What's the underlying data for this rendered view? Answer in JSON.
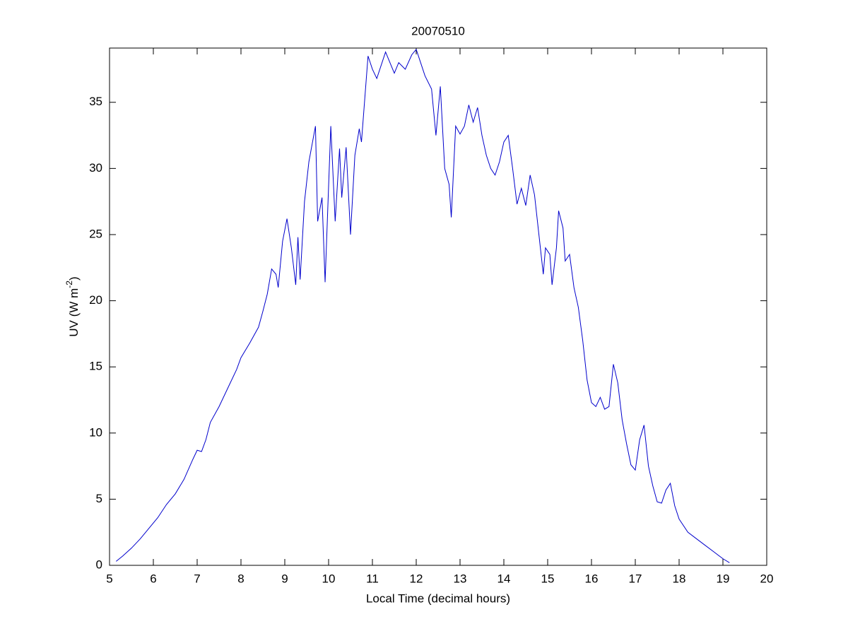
{
  "chart_data": {
    "type": "line",
    "title": "20070510",
    "x_label": "Local Time (decimal hours)",
    "y_label": {
      "text": "UV (W m",
      "superscript": "-2",
      "suffix": ")"
    },
    "xlim": [
      5,
      20
    ],
    "xticks": [
      5,
      6,
      7,
      8,
      9,
      10,
      11,
      12,
      13,
      14,
      15,
      16,
      17,
      18,
      19,
      20
    ],
    "ylim": [
      0,
      39.1
    ],
    "yticks": [
      0,
      5,
      10,
      15,
      20,
      25,
      30,
      35
    ],
    "grid": false,
    "series": [
      {
        "color": "#0000cc",
        "x": [
          5.15,
          5.3,
          5.5,
          5.7,
          5.9,
          6.1,
          6.3,
          6.5,
          6.7,
          6.9,
          7.0,
          7.1,
          7.2,
          7.3,
          7.5,
          7.7,
          7.9,
          8.0,
          8.2,
          8.4,
          8.5,
          8.6,
          8.7,
          8.8,
          8.85,
          8.95,
          9.05,
          9.15,
          9.25,
          9.3,
          9.35,
          9.45,
          9.55,
          9.7,
          9.75,
          9.85,
          9.92,
          10.05,
          10.15,
          10.25,
          10.3,
          10.4,
          10.5,
          10.6,
          10.7,
          10.75,
          10.9,
          11.0,
          11.1,
          11.3,
          11.5,
          11.6,
          11.75,
          11.9,
          12.0,
          12.1,
          12.2,
          12.35,
          12.45,
          12.55,
          12.65,
          12.75,
          12.8,
          12.9,
          13.0,
          13.1,
          13.2,
          13.3,
          13.4,
          13.5,
          13.6,
          13.7,
          13.8,
          13.9,
          14.0,
          14.1,
          14.2,
          14.3,
          14.4,
          14.5,
          14.6,
          14.7,
          14.8,
          14.9,
          14.95,
          15.05,
          15.1,
          15.2,
          15.25,
          15.35,
          15.4,
          15.5,
          15.6,
          15.7,
          15.8,
          15.9,
          16.0,
          16.1,
          16.2,
          16.3,
          16.4,
          16.5,
          16.6,
          16.7,
          16.8,
          16.9,
          17.0,
          17.1,
          17.2,
          17.3,
          17.4,
          17.5,
          17.6,
          17.7,
          17.8,
          17.9,
          18.0,
          18.2,
          18.4,
          18.6,
          18.8,
          19.0,
          19.15
        ],
        "values": [
          0.3,
          0.7,
          1.3,
          2.0,
          2.8,
          3.6,
          4.6,
          5.4,
          6.5,
          8.0,
          8.7,
          8.6,
          9.5,
          10.8,
          12.0,
          13.4,
          14.8,
          15.7,
          16.8,
          18.0,
          19.2,
          20.5,
          22.4,
          22.0,
          21.0,
          24.5,
          26.2,
          24.0,
          21.2,
          24.8,
          21.6,
          27.5,
          30.5,
          33.2,
          26.0,
          27.8,
          21.4,
          33.2,
          26.0,
          31.5,
          27.8,
          31.6,
          25.0,
          31.0,
          33.0,
          32.0,
          38.5,
          37.5,
          36.8,
          38.8,
          37.2,
          38.0,
          37.5,
          38.6,
          39.0,
          38.0,
          37.0,
          36.0,
          32.5,
          36.2,
          30.0,
          28.8,
          26.3,
          33.2,
          32.6,
          33.2,
          34.8,
          33.5,
          34.6,
          32.5,
          31.0,
          30.0,
          29.5,
          30.5,
          32.0,
          32.5,
          30.0,
          27.3,
          28.5,
          27.2,
          29.5,
          28.0,
          25.0,
          22.0,
          24.0,
          23.5,
          21.2,
          24.0,
          26.8,
          25.5,
          23.0,
          23.5,
          21.0,
          19.5,
          17.0,
          14.0,
          12.3,
          12.0,
          12.7,
          11.8,
          12.0,
          15.2,
          13.8,
          11.0,
          9.2,
          7.6,
          7.2,
          9.5,
          10.6,
          7.5,
          6.0,
          4.8,
          4.7,
          5.7,
          6.2,
          4.5,
          3.5,
          2.5,
          2.0,
          1.5,
          1.0,
          0.5,
          0.2
        ]
      }
    ]
  }
}
